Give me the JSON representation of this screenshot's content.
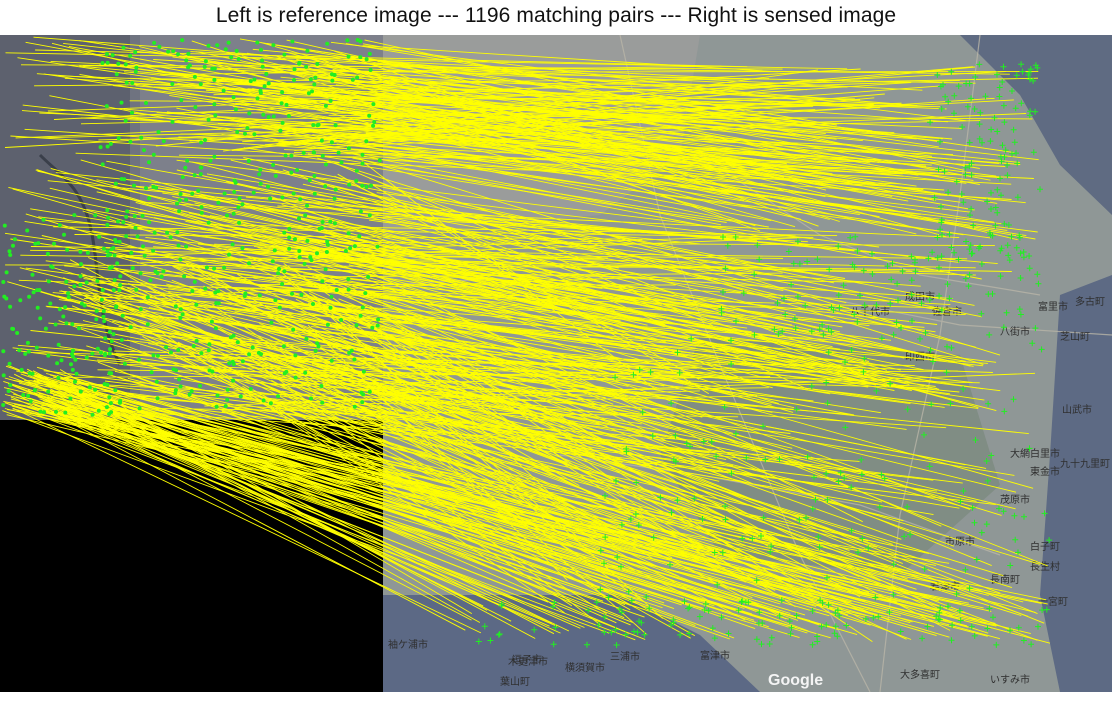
{
  "figure": {
    "title": "Left is reference image --- 1196 matching pairs --- Right is sensed image",
    "match_count": 1196
  },
  "colors": {
    "match_line": "#ffff00",
    "reference_point": "#22ee22",
    "sensed_point": "#22ee22",
    "background": "#000000"
  },
  "left_panel": {
    "content": "reference-satellite-image"
  },
  "right_panel": {
    "content": "sensed-map-image",
    "watermark": "Google",
    "place_labels": [
      "成田市",
      "八千代市",
      "佐倉市",
      "富里市",
      "八街市",
      "芝山町",
      "山武市",
      "九十九里町",
      "大網白里市",
      "茂原市",
      "長生村",
      "一宮町",
      "長南町",
      "市原市",
      "袖ケ浦市",
      "木更津市",
      "富津市",
      "君津市",
      "横須賀市",
      "三浦市",
      "逗子市",
      "葉山町",
      "大多喜町",
      "いすみ市",
      "印西市",
      "多古町",
      "東金市",
      "白子町"
    ]
  }
}
